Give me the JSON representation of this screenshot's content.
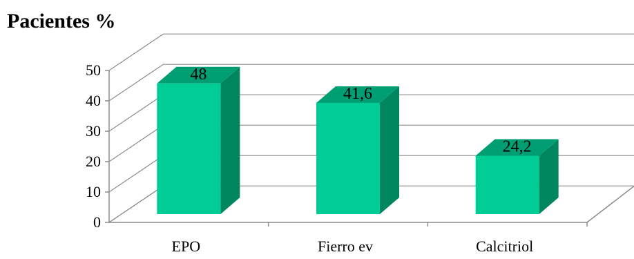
{
  "chart_data": {
    "type": "bar",
    "title": "Pacientes  %",
    "xlabel": "",
    "ylabel": "",
    "categories": [
      "EPO",
      "Fierro ev",
      "Calcitriol"
    ],
    "values": [
      48,
      41.6,
      24.2
    ],
    "value_labels": [
      "48",
      "41,6",
      "24,2"
    ],
    "yticks": [
      "0",
      "10",
      "20",
      "30",
      "40",
      "50"
    ],
    "ylim": [
      0,
      50
    ],
    "grid": true,
    "legend": "none",
    "colors": {
      "bar_front": "#00CC96",
      "bar_side": "#00865F",
      "bar_top": "#009E73"
    }
  }
}
